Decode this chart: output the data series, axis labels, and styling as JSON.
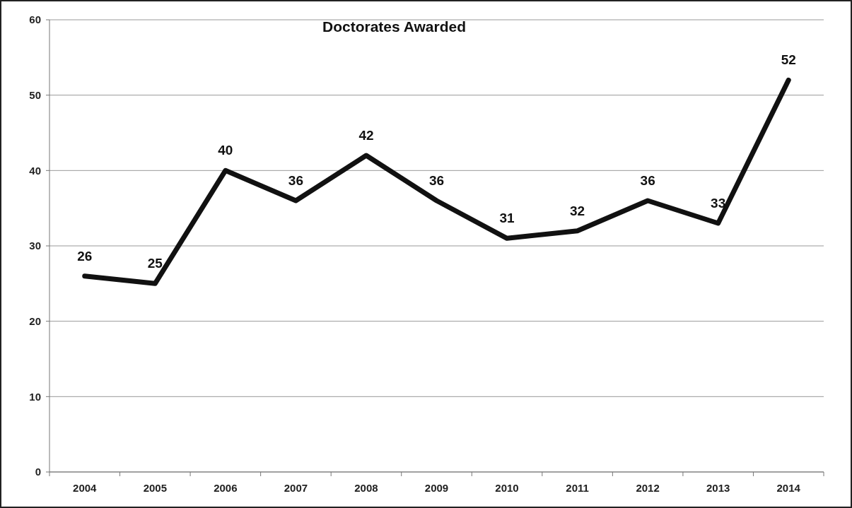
{
  "chart_data": {
    "type": "line",
    "title": "Doctorates Awarded",
    "categories": [
      "2004",
      "2005",
      "2006",
      "2007",
      "2008",
      "2009",
      "2010",
      "2011",
      "2012",
      "2013",
      "2014"
    ],
    "series": [
      {
        "color": "#111111",
        "values": [
          26,
          25,
          40,
          36,
          42,
          36,
          31,
          32,
          36,
          33,
          52
        ]
      }
    ],
    "ylim": [
      0,
      60
    ],
    "yticks": [
      0,
      10,
      20,
      30,
      40,
      50,
      60
    ],
    "grid": "y",
    "data_labels": true,
    "marker": "none",
    "line_style": "solid"
  }
}
